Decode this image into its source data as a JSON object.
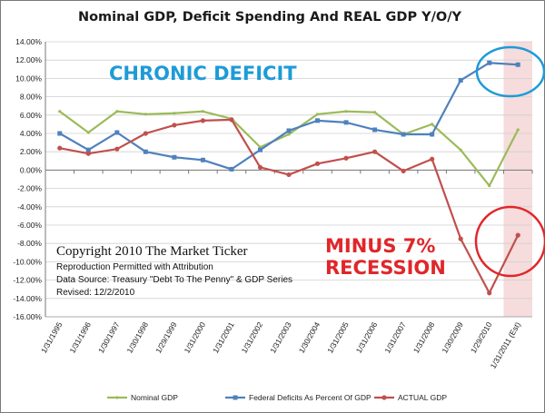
{
  "chart_data": {
    "type": "line",
    "title": "Nominal GDP, Deficit Spending And REAL GDP Y/O/Y",
    "categories": [
      "1/31/1995",
      "1/31/1996",
      "1/30/1997",
      "1/30/1998",
      "1/29/1999",
      "1/31/2000",
      "1/31/2001",
      "1/31/2002",
      "1/31/2003",
      "1/30/2004",
      "1/31/2005",
      "1/31/2006",
      "1/31/2007",
      "1/31/2008",
      "1/30/2009",
      "1/29/2010",
      "1/31/2011 (Est)"
    ],
    "y_ticks": [
      "14.00%",
      "12.00%",
      "10.00%",
      "8.00%",
      "6.00%",
      "4.00%",
      "2.00%",
      "0.00%",
      "-2.00%",
      "-4.00%",
      "-6.00%",
      "-8.00%",
      "-10.00%",
      "-12.00%",
      "-14.00%",
      "-16.00%"
    ],
    "ylim": [
      -16,
      14
    ],
    "grid": true,
    "legend_position": "bottom",
    "series": [
      {
        "name": "Nominal GDP",
        "color": "#9bbb59",
        "values": [
          6.4,
          4.1,
          6.4,
          6.1,
          6.2,
          6.4,
          5.6,
          2.5,
          3.9,
          6.1,
          6.4,
          6.3,
          3.9,
          5.0,
          2.2,
          -1.7,
          4.4
        ]
      },
      {
        "name": "Federal Deficits As Percent Of GDP",
        "color": "#4f81bd",
        "values": [
          4.0,
          2.2,
          4.1,
          2.0,
          1.4,
          1.1,
          0.1,
          2.2,
          4.3,
          5.4,
          5.2,
          4.4,
          3.9,
          3.9,
          9.8,
          11.7,
          11.5
        ]
      },
      {
        "name": "ACTUAL GDP",
        "color": "#c0504d",
        "values": [
          2.4,
          1.8,
          2.3,
          4.0,
          4.9,
          5.4,
          5.5,
          0.3,
          -0.5,
          0.7,
          1.3,
          2.0,
          -0.1,
          1.2,
          -7.5,
          -13.4,
          -7.1
        ]
      }
    ],
    "annotations": {
      "chronic": "CHRONIC DEFICIT",
      "minus_line1": "MINUS 7%",
      "minus_line2": "RECESSION"
    },
    "copyright": {
      "line1": "Copyright 2010 The Market Ticker",
      "line2": "Reproduction Permitted with Attribution",
      "line3": "Data Source:  Treasury \"Debt To The Penny\" & GDP Series",
      "line4": "Revised: 12/2/2010"
    },
    "shade_color": "#f6dcdc",
    "ann_blue_color": "#1e9bd7",
    "ann_red_color": "#e0262a"
  }
}
